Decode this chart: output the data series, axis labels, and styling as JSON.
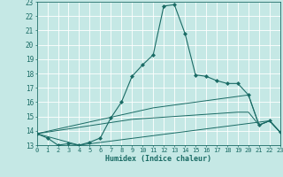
{
  "xlabel": "Humidex (Indice chaleur)",
  "xlim": [
    0,
    23
  ],
  "ylim": [
    13,
    23
  ],
  "yticks": [
    13,
    14,
    15,
    16,
    17,
    18,
    19,
    20,
    21,
    22,
    23
  ],
  "xticks": [
    0,
    1,
    2,
    3,
    4,
    5,
    6,
    7,
    8,
    9,
    10,
    11,
    12,
    13,
    14,
    15,
    16,
    17,
    18,
    19,
    20,
    21,
    22,
    23
  ],
  "bg_color": "#c5e8e5",
  "grid_color": "#ffffff",
  "line_color": "#1a6b65",
  "lines": [
    {
      "x": [
        0,
        1,
        2,
        3,
        4,
        5,
        6,
        7,
        8,
        9,
        10,
        11,
        12,
        13,
        14,
        15,
        16,
        17,
        18,
        19,
        20,
        21,
        22,
        23
      ],
      "y": [
        13.8,
        13.5,
        13.0,
        13.1,
        13.0,
        13.2,
        13.5,
        14.9,
        16.0,
        17.8,
        18.6,
        19.3,
        22.7,
        22.8,
        20.8,
        17.9,
        17.8,
        17.5,
        17.3,
        17.3,
        16.5,
        14.4,
        14.7,
        13.9
      ],
      "has_markers": true
    },
    {
      "x": [
        0,
        4,
        22,
        23
      ],
      "y": [
        13.8,
        13.0,
        14.7,
        13.9
      ],
      "has_markers": false
    },
    {
      "x": [
        0,
        9,
        19,
        20,
        21,
        22,
        23
      ],
      "y": [
        13.8,
        14.8,
        15.3,
        15.3,
        14.4,
        14.7,
        13.9
      ],
      "has_markers": false
    },
    {
      "x": [
        0,
        11,
        20,
        21,
        22,
        23
      ],
      "y": [
        13.8,
        15.6,
        16.5,
        14.4,
        14.7,
        13.9
      ],
      "has_markers": false
    }
  ]
}
